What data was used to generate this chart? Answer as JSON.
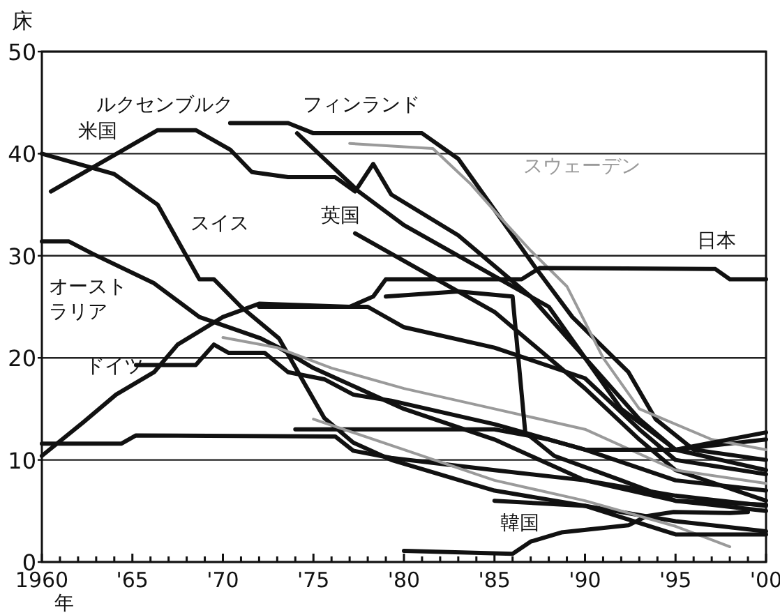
{
  "chart_data": {
    "type": "line",
    "xlabel": "年",
    "ylabel": "床",
    "xlim": [
      1960,
      2000
    ],
    "ylim": [
      0,
      50
    ],
    "xticks": [
      {
        "value": 1960,
        "label": "1960"
      },
      {
        "value": 1961,
        "label": null
      },
      {
        "value": 1962,
        "label": null
      },
      {
        "value": 1963,
        "label": null
      },
      {
        "value": 1964,
        "label": null
      },
      {
        "value": 1965,
        "label": "'65"
      },
      {
        "value": 1966,
        "label": null
      },
      {
        "value": 1967,
        "label": null
      },
      {
        "value": 1968,
        "label": null
      },
      {
        "value": 1969,
        "label": null
      },
      {
        "value": 1970,
        "label": "'70"
      },
      {
        "value": 1971,
        "label": null
      },
      {
        "value": 1972,
        "label": null
      },
      {
        "value": 1973,
        "label": null
      },
      {
        "value": 1974,
        "label": null
      },
      {
        "value": 1975,
        "label": "'75"
      },
      {
        "value": 1976,
        "label": null
      },
      {
        "value": 1977,
        "label": null
      },
      {
        "value": 1978,
        "label": null
      },
      {
        "value": 1979,
        "label": null
      },
      {
        "value": 1980,
        "label": "'80"
      },
      {
        "value": 1981,
        "label": null
      },
      {
        "value": 1982,
        "label": null
      },
      {
        "value": 1983,
        "label": null
      },
      {
        "value": 1984,
        "label": null
      },
      {
        "value": 1985,
        "label": "'85"
      },
      {
        "value": 1986,
        "label": null
      },
      {
        "value": 1987,
        "label": null
      },
      {
        "value": 1988,
        "label": null
      },
      {
        "value": 1989,
        "label": null
      },
      {
        "value": 1990,
        "label": "'90"
      },
      {
        "value": 1991,
        "label": null
      },
      {
        "value": 1992,
        "label": null
      },
      {
        "value": 1993,
        "label": null
      },
      {
        "value": 1994,
        "label": null
      },
      {
        "value": 1995,
        "label": "'95"
      },
      {
        "value": 1996,
        "label": null
      },
      {
        "value": 1997,
        "label": null
      },
      {
        "value": 1998,
        "label": null
      },
      {
        "value": 1999,
        "label": null
      },
      {
        "value": 2000,
        "label": "'00"
      }
    ],
    "yticks": [
      0,
      10,
      20,
      30,
      40,
      50
    ],
    "grid": "y",
    "series": [
      {
        "name": "スイス",
        "color": "#111111",
        "x": [
          1960,
          1964,
          1966.4,
          1968.7,
          1969.5,
          1971,
          1973.1,
          1974.6,
          1975.6,
          1977.2,
          1979.3,
          1985,
          1990,
          1995,
          2000
        ],
        "values": [
          40,
          38,
          35,
          27.7,
          27.7,
          25,
          21.9,
          17.2,
          14.1,
          11.7,
          10,
          7,
          5.5,
          4,
          3
        ]
      },
      {
        "name": "米国",
        "color": "#111111",
        "x": [
          1960.5,
          1966.4,
          1968.5,
          1970.4,
          1971.6,
          1973.6,
          1976.2,
          1977.3,
          1978.3,
          1979.3,
          1983,
          1987,
          1990,
          1993,
          1995,
          2000
        ],
        "values": [
          36.3,
          42.3,
          42.3,
          40.4,
          38.2,
          37.7,
          37.7,
          36.3,
          39,
          36,
          32,
          26,
          20,
          14,
          11,
          12
        ]
      },
      {
        "name": "フィンランド",
        "color": "#111111",
        "x": [
          1974.1,
          1977.5,
          1980,
          1985,
          1988,
          1990,
          1992,
          1995,
          2000
        ],
        "values": [
          42,
          36.3,
          33,
          28,
          25,
          20,
          15,
          11,
          9
        ]
      },
      {
        "name": "ルクセンブルク",
        "color": "#111111",
        "x": [
          1970.4,
          1973.6,
          1975,
          1981,
          1983,
          1985.4,
          1987.2,
          1989.3,
          1992.4,
          1993.9,
          1996,
          2000
        ],
        "values": [
          43,
          43,
          42,
          42,
          39.5,
          33.5,
          29,
          24,
          18.6,
          14,
          11,
          10
        ]
      },
      {
        "name": "スウェーデン",
        "color": "#9a9a9a",
        "x": [
          1977,
          1981.6,
          1983.7,
          1985.4,
          1987,
          1989,
          1991,
          1993,
          1997,
          2000
        ],
        "values": [
          41,
          40.5,
          37,
          33.6,
          30.5,
          27,
          20,
          15,
          12,
          11
        ]
      },
      {
        "name": "英国",
        "color": "#111111",
        "x": [
          1977.3,
          1980,
          1985,
          1990,
          1993,
          1995,
          2000
        ],
        "values": [
          32.2,
          29.5,
          24.5,
          17,
          12,
          9,
          6
        ]
      },
      {
        "name": "日本",
        "color": "#111111",
        "x": [
          1960,
          1962.3,
          1964.1,
          1966.2,
          1967.5,
          1970,
          1972,
          1977,
          1978.3,
          1979,
          1986.5,
          1987.5,
          1997.2,
          1998,
          2000
        ],
        "values": [
          10.4,
          13.7,
          16.4,
          18.6,
          21.3,
          24,
          25.3,
          25,
          26,
          27.7,
          27.7,
          28.8,
          28.7,
          27.7,
          27.7
        ]
      },
      {
        "name": "オーストラリア",
        "color": "#111111",
        "x": [
          1960,
          1961.5,
          1962.8,
          1966.2,
          1968.7,
          1972.1,
          1973.1,
          1975,
          1980,
          1985,
          1990,
          1995,
          2000
        ],
        "values": [
          31.4,
          31.4,
          30.2,
          27.3,
          24,
          21.9,
          21,
          19,
          15,
          12,
          8,
          6,
          5
        ]
      },
      {
        "name": "ドイツ",
        "color": "#111111",
        "x": [
          1965.2,
          1968.5,
          1969.5,
          1970.3,
          1972.3,
          1973.6,
          1975.6,
          1977.2,
          1979.3,
          1985,
          1990,
          1995,
          2000
        ],
        "values": [
          19.3,
          19.3,
          21.3,
          20.5,
          20.5,
          18.6,
          17.9,
          16.4,
          15.8,
          13.5,
          11,
          8,
          7
        ]
      },
      {
        "name": "韓国",
        "color": "#111111",
        "x": [
          1980,
          1986,
          1987,
          1988.7,
          1992.4,
          1993.4,
          1994.9,
          1998,
          1999
        ],
        "values": [
          1.1,
          0.8,
          2,
          2.9,
          3.6,
          4.5,
          4.9,
          4.8,
          4.9
        ]
      },
      {
        "color": "#111111",
        "x": [
          1960,
          1964.4,
          1965.2,
          1976.2,
          1977.2,
          1979.3,
          1985,
          1990,
          1995,
          2000
        ],
        "values": [
          11.6,
          11.6,
          12.4,
          12.3,
          10.9,
          10.2,
          9,
          8,
          6.5,
          5.5
        ]
      },
      {
        "color": "#111111",
        "x": [
          1972,
          1975,
          1978,
          1980,
          1985,
          1990,
          1993,
          1995,
          2000
        ],
        "values": [
          25,
          25,
          25,
          23,
          21,
          18,
          13,
          10,
          8.6
        ]
      },
      {
        "color": "#9a9a9a",
        "x": [
          1970,
          1973,
          1976,
          1980,
          1985,
          1990,
          1995,
          2000
        ],
        "values": [
          22,
          21,
          19,
          17,
          15,
          13,
          9,
          7.7
        ]
      },
      {
        "color": "#111111",
        "x": [
          1974,
          1980,
          1985,
          1988,
          1990,
          1995,
          2000
        ],
        "values": [
          13,
          13,
          13,
          12,
          11,
          11,
          12.7
        ]
      },
      {
        "color": "#111111",
        "x": [
          1979,
          1983,
          1986,
          1986.7,
          1988.3,
          1992,
          1995,
          2000
        ],
        "values": [
          26,
          26.5,
          26,
          12.7,
          10.4,
          8,
          6,
          5.6
        ]
      },
      {
        "color": "#9a9a9a",
        "x": [
          1975,
          1980,
          1985,
          1990,
          1995,
          1998
        ],
        "values": [
          14,
          11,
          8,
          6,
          3.5,
          1.5
        ]
      },
      {
        "color": "#111111",
        "x": [
          1985,
          1990,
          1995,
          2000
        ],
        "values": [
          6,
          5.5,
          2.7,
          2.7
        ]
      }
    ]
  }
}
